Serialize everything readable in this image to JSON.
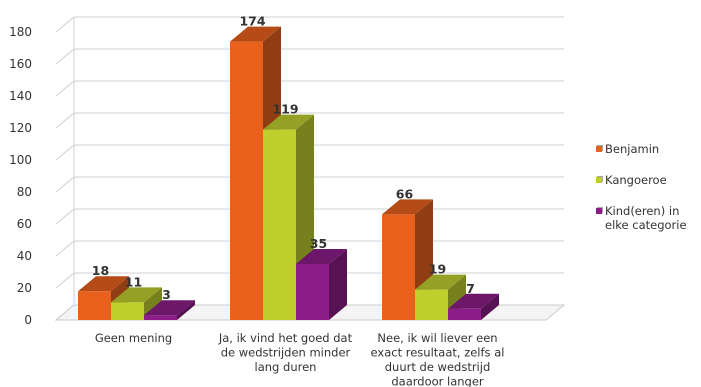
{
  "chart_data": {
    "type": "bar",
    "title": "",
    "xlabel": "",
    "ylabel": "",
    "ylim": [
      0,
      180
    ],
    "yticks": [
      0,
      20,
      40,
      60,
      80,
      100,
      120,
      140,
      160,
      180
    ],
    "grid": true,
    "legend_position": "right",
    "categories": [
      [
        "Geen mening"
      ],
      [
        "Ja, ik vind het goed dat",
        "de wedstrijden minder",
        "lang duren"
      ],
      [
        "Nee, ik wil liever een",
        "exact resultaat, zelfs al",
        "duurt de wedstrijd",
        "daardoor langer"
      ]
    ],
    "series": [
      {
        "name": "Benjamin",
        "values": [
          18,
          174,
          66
        ],
        "color": "#E8621E"
      },
      {
        "name": "Kangoeroe",
        "values": [
          11,
          119,
          19
        ],
        "color": "#BFCF2E"
      },
      {
        "name": "Kind(eren) in elke categorie",
        "values": [
          3,
          35,
          7
        ],
        "color": "#8C1D88"
      }
    ],
    "data_labels": true
  }
}
